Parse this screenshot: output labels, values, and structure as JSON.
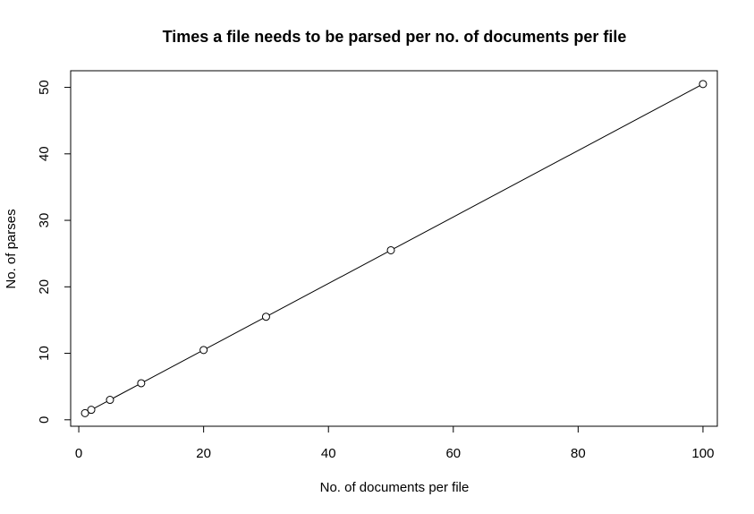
{
  "chart_data": {
    "type": "line",
    "title": "Times a file needs to be parsed per no. of documents per file",
    "xlabel": "No. of documents per file",
    "ylabel": "No. of parses",
    "x": [
      1,
      2,
      5,
      10,
      20,
      30,
      50,
      100
    ],
    "series": [
      {
        "values": [
          1,
          1.5,
          3,
          5.5,
          10.5,
          15.5,
          25.5,
          50.5
        ],
        "marker": "open-circle",
        "line": true,
        "color": "#000000"
      }
    ],
    "xlim": [
      -1.3,
      102.3
    ],
    "ylim": [
      -0.97,
      52.5
    ],
    "xticks": [
      0,
      20,
      40,
      60,
      80,
      100
    ],
    "yticks": [
      0,
      10,
      20,
      30,
      40,
      50
    ],
    "xtick_labels": [
      "0",
      "20",
      "40",
      "60",
      "80",
      "100"
    ],
    "ytick_labels": [
      "0",
      "10",
      "20",
      "30",
      "40",
      "50"
    ],
    "grid": false,
    "legend": "none",
    "box": true
  }
}
